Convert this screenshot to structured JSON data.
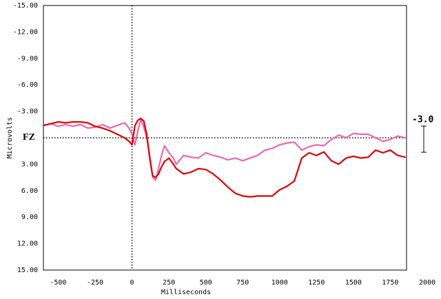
{
  "chart_data": {
    "type": "line",
    "y_label": "Microvolts",
    "x_label": "Milliseconds",
    "channel": "FZ",
    "scale_label": "-3.0",
    "xlim": [
      -600,
      1860
    ],
    "ylim": [
      -15,
      15
    ],
    "y_inverted": true,
    "xticks": [
      -500,
      -250,
      0,
      250,
      500,
      750,
      1000,
      1250,
      1500,
      1750,
      2000
    ],
    "yticks": [
      {
        "value": -15,
        "label": "-15.00"
      },
      {
        "value": -12,
        "label": "-12.00"
      },
      {
        "value": -9,
        "label": "-9.00"
      },
      {
        "value": -6,
        "label": "-6.00"
      },
      {
        "value": -3,
        "label": "-3.00"
      },
      {
        "value": 3,
        "label": "3.00"
      },
      {
        "value": 6,
        "label": "6.00"
      },
      {
        "value": 9,
        "label": "9.00"
      },
      {
        "value": 12,
        "label": "12.00"
      },
      {
        "value": 15,
        "label": "15.00"
      }
    ],
    "x": [
      -600,
      -550,
      -500,
      -450,
      -400,
      -350,
      -300,
      -250,
      -200,
      -150,
      -100,
      -50,
      -20,
      0,
      20,
      40,
      60,
      80,
      100,
      120,
      140,
      160,
      180,
      200,
      220,
      250,
      280,
      300,
      350,
      400,
      450,
      500,
      550,
      600,
      650,
      700,
      750,
      800,
      850,
      900,
      950,
      1000,
      1050,
      1100,
      1150,
      1200,
      1250,
      1300,
      1350,
      1400,
      1450,
      1500,
      1550,
      1600,
      1650,
      1700,
      1750,
      1800,
      1850
    ],
    "series": [
      {
        "color": "#dd0000",
        "width": 2.2,
        "values": [
          -1.4,
          -1.6,
          -1.8,
          -1.7,
          -1.8,
          -1.8,
          -1.7,
          -1.3,
          -1.1,
          -0.8,
          -0.4,
          0,
          0.4,
          0.8,
          -1.4,
          -2.0,
          -2.2,
          -1.9,
          -0.4,
          2.3,
          4.3,
          4.5,
          4.1,
          3.3,
          2.7,
          2.3,
          3.0,
          3.5,
          4.1,
          3.9,
          3.5,
          3.6,
          4.1,
          4.8,
          5.6,
          6.3,
          6.6,
          6.7,
          6.6,
          6.6,
          6.6,
          5.9,
          5.5,
          4.9,
          2.3,
          1.7,
          2.0,
          1.6,
          2.6,
          3.0,
          2.3,
          2.1,
          2.3,
          2.2,
          1.4,
          1.7,
          1.4,
          2.0,
          2.2
        ]
      },
      {
        "color": "#ee66aa",
        "width": 2.2,
        "values": [
          -1.4,
          -1.6,
          -1.3,
          -1.5,
          -1.3,
          -1.5,
          -1.1,
          -1.2,
          -1.5,
          -1.1,
          -1.4,
          -1.7,
          -1.1,
          -0.4,
          0.8,
          -0.8,
          -2.1,
          -1.2,
          0,
          2.0,
          4.5,
          4.8,
          3.5,
          2.0,
          0.9,
          1.7,
          2.3,
          3.0,
          2.0,
          2.2,
          2.3,
          1.7,
          2.0,
          2.2,
          2.5,
          2.3,
          2.6,
          2.3,
          2.0,
          1.4,
          1.2,
          0.8,
          0.6,
          0.5,
          1.4,
          1.0,
          0.8,
          0.9,
          0.2,
          -0.3,
          0,
          -0.5,
          -0.4,
          -0.4,
          0,
          0.4,
          0.2,
          -0.2,
          0
        ]
      }
    ]
  }
}
